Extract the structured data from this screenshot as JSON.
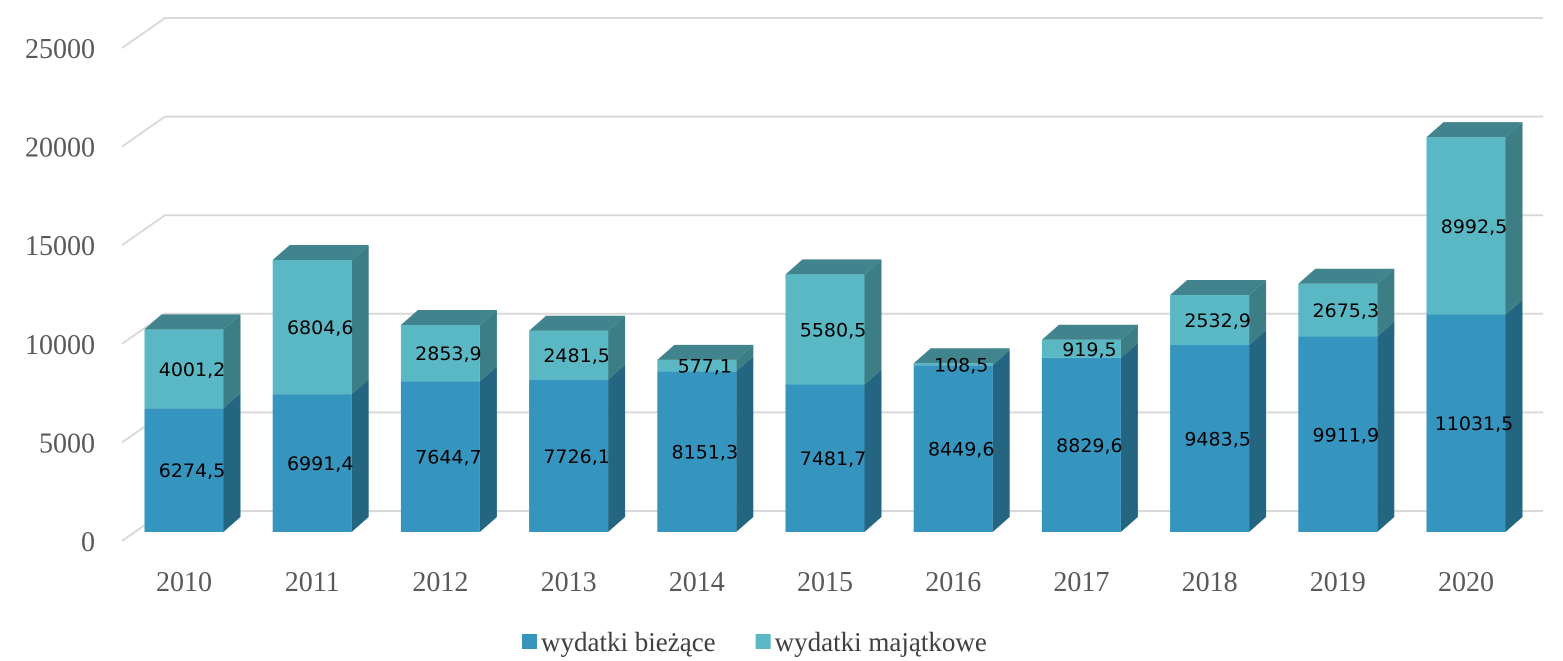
{
  "chart_data": {
    "type": "bar",
    "stacked": true,
    "categories": [
      "2010",
      "2011",
      "2012",
      "2013",
      "2014",
      "2015",
      "2016",
      "2017",
      "2018",
      "2019",
      "2020"
    ],
    "series": [
      {
        "name": "wydatki bieżące",
        "color": "#3595bf",
        "values": [
          6274.5,
          6991.4,
          7644.7,
          7726.1,
          8151.3,
          7481.7,
          8449.6,
          8829.6,
          9483.5,
          9911.9,
          11031.5
        ],
        "value_labels": [
          "6274,5",
          "6991,4",
          "7644,7",
          "7726,1",
          "8151,3",
          "7481,7",
          "8449,6",
          "8829,6",
          "9483,5",
          "9911,9",
          "11031,5"
        ]
      },
      {
        "name": "wydatki majątkowe",
        "color": "#5ab8c4",
        "values": [
          4001.2,
          6804.6,
          2853.9,
          2481.5,
          577.1,
          5580.5,
          108.5,
          919.5,
          2532.9,
          2675.3,
          8992.5
        ],
        "value_labels": [
          "4001,2",
          "6804,6",
          "2853,9",
          "2481,5",
          "577,1",
          "5580,5",
          "108,5",
          "919,5",
          "2532,9",
          "2675,3",
          "8992,5"
        ]
      }
    ],
    "ylim": [
      0,
      25000
    ],
    "yticks": [
      0,
      5000,
      10000,
      15000,
      20000,
      25000
    ],
    "grid": true,
    "legend": "bottom"
  }
}
